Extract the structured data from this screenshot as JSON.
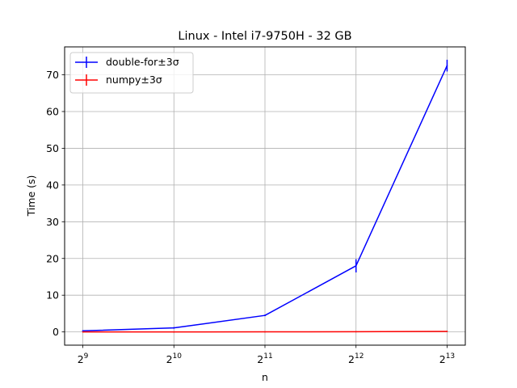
{
  "chart_data": {
    "type": "line",
    "title": "Linux - Intel i7-9750H - 32 GB",
    "xlabel": "n",
    "ylabel": "Time (s)",
    "x_scale": "log2",
    "x": [
      512,
      1024,
      2048,
      4096,
      8192
    ],
    "x_tick_labels": [
      {
        "base": "2",
        "exp": "9"
      },
      {
        "base": "2",
        "exp": "10"
      },
      {
        "base": "2",
        "exp": "11"
      },
      {
        "base": "2",
        "exp": "12"
      },
      {
        "base": "2",
        "exp": "13"
      }
    ],
    "y_ticks": [
      0,
      10,
      20,
      30,
      40,
      50,
      60,
      70
    ],
    "ylim": [
      -3.6,
      77.6
    ],
    "grid": true,
    "legend_position": "top-left",
    "series": [
      {
        "name": "double-for±3σ",
        "color": "#0000ff",
        "values": [
          0.3,
          1.1,
          4.5,
          18.0,
          72.5
        ],
        "errors": [
          0.05,
          0.1,
          0.2,
          1.8,
          1.6
        ]
      },
      {
        "name": "numpy±3σ",
        "color": "#ff0000",
        "values": [
          0.0,
          0.0,
          0.02,
          0.05,
          0.15
        ],
        "errors": [
          0.0,
          0.0,
          0.0,
          0.0,
          0.0
        ]
      }
    ]
  }
}
